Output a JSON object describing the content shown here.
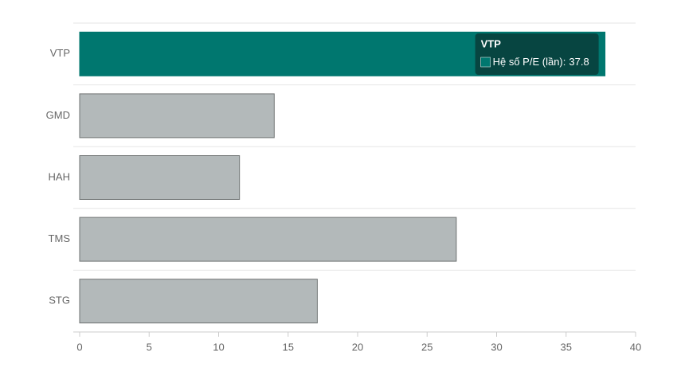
{
  "chart_data": {
    "type": "hbar",
    "categories": [
      "VTP",
      "GMD",
      "HAH",
      "TMS",
      "STG"
    ],
    "values": [
      37.8,
      14,
      11.5,
      27.1,
      17.1
    ],
    "colors": [
      "#00776f",
      "#b3b9ba",
      "#b3b9ba",
      "#b3b9ba",
      "#b3b9ba"
    ],
    "xlim": [
      0,
      40
    ],
    "xticks": [
      0,
      5,
      10,
      15,
      20,
      25,
      30,
      35,
      40
    ],
    "grid": true,
    "tooltip": {
      "label": "Hệ số P/E (lần):"
    }
  }
}
